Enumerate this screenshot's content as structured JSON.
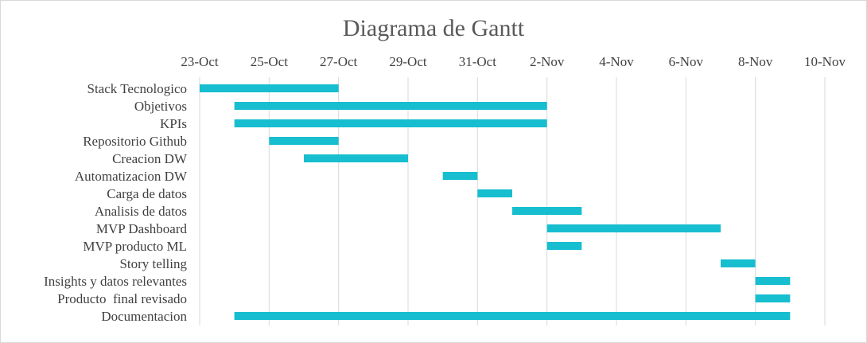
{
  "chart_data": {
    "type": "bar",
    "orientation": "horizontal-gantt",
    "title": "Diagrama de Gantt",
    "xlabel": "",
    "ylabel": "",
    "x_axis_position": "top",
    "xlim": [
      "2023-10-23",
      "2023-11-10"
    ],
    "x_ticks": [
      {
        "date": "2023-10-23",
        "label": "23-Oct"
      },
      {
        "date": "2023-10-25",
        "label": "25-Oct"
      },
      {
        "date": "2023-10-27",
        "label": "27-Oct"
      },
      {
        "date": "2023-10-29",
        "label": "29-Oct"
      },
      {
        "date": "2023-10-31",
        "label": "31-Oct"
      },
      {
        "date": "2023-11-02",
        "label": "2-Nov"
      },
      {
        "date": "2023-11-04",
        "label": "4-Nov"
      },
      {
        "date": "2023-11-06",
        "label": "6-Nov"
      },
      {
        "date": "2023-11-08",
        "label": "8-Nov"
      },
      {
        "date": "2023-11-10",
        "label": "10-Nov"
      }
    ],
    "grid": "vertical",
    "legend": "none",
    "bar_color": "#17BECF",
    "grid_color": "#d9d9d9",
    "tasks": [
      {
        "name": "Stack Tecnologico",
        "start": "2023-10-23",
        "end": "2023-10-27"
      },
      {
        "name": "Objetivos",
        "start": "2023-10-24",
        "end": "2023-11-02"
      },
      {
        "name": "KPIs",
        "start": "2023-10-24",
        "end": "2023-11-02"
      },
      {
        "name": "Repositorio Github",
        "start": "2023-10-25",
        "end": "2023-10-27"
      },
      {
        "name": "Creacion DW",
        "start": "2023-10-26",
        "end": "2023-10-29"
      },
      {
        "name": "Automatizacion DW",
        "start": "2023-10-30",
        "end": "2023-10-31"
      },
      {
        "name": "Carga de datos",
        "start": "2023-10-31",
        "end": "2023-11-01"
      },
      {
        "name": "Analisis de datos",
        "start": "2023-11-01",
        "end": "2023-11-03"
      },
      {
        "name": "MVP Dashboard",
        "start": "2023-11-02",
        "end": "2023-11-07"
      },
      {
        "name": "MVP producto ML",
        "start": "2023-11-02",
        "end": "2023-11-03"
      },
      {
        "name": "Story telling",
        "start": "2023-11-07",
        "end": "2023-11-08"
      },
      {
        "name": "Insights y datos relevantes",
        "start": "2023-11-08",
        "end": "2023-11-09"
      },
      {
        "name": "Producto  final revisado",
        "start": "2023-11-08",
        "end": "2023-11-09"
      },
      {
        "name": "Documentacion",
        "start": "2023-10-24",
        "end": "2023-11-09"
      }
    ]
  }
}
